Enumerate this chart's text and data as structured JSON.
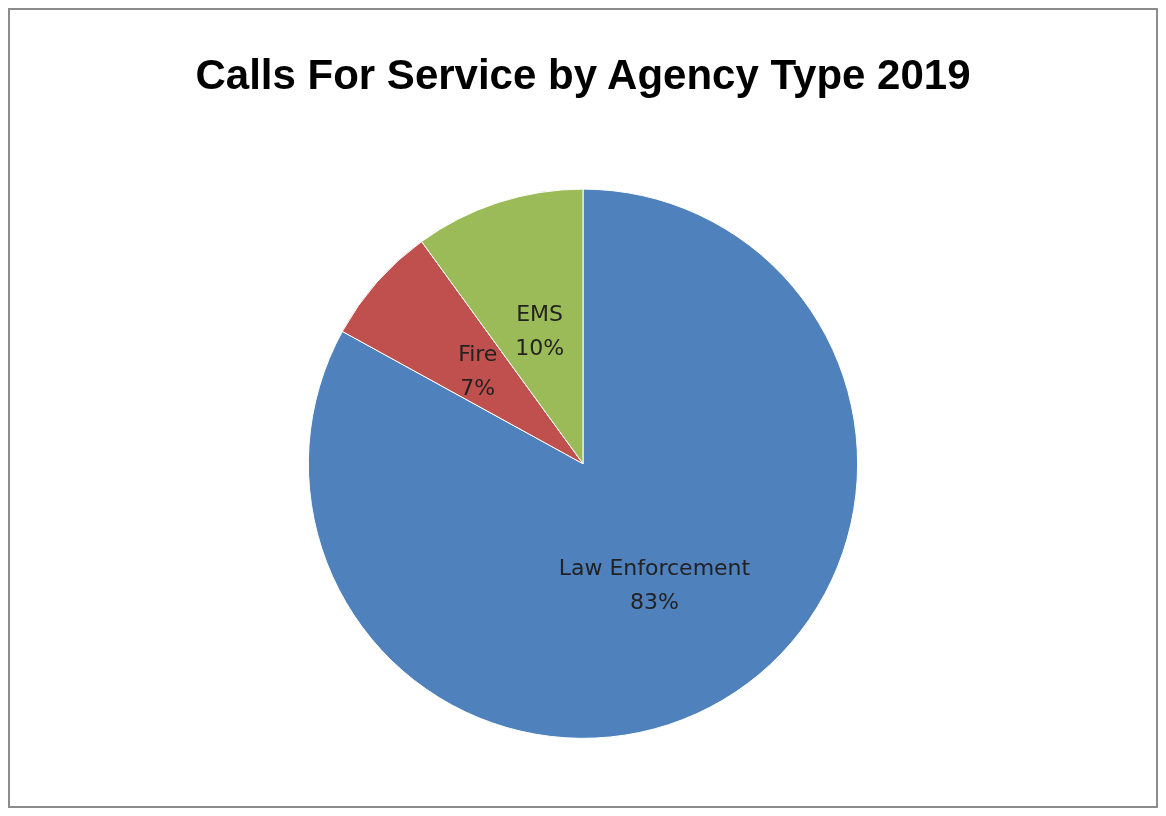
{
  "chart_data": {
    "type": "pie",
    "title": "Calls For Service by Agency Type 2019",
    "categories": [
      "Law Enforcement",
      "Fire",
      "EMS"
    ],
    "values": [
      83,
      7,
      10
    ],
    "colors": [
      "#4f81bd",
      "#c0504d",
      "#9bbb59"
    ],
    "value_labels": [
      "83%",
      "7%",
      "10%"
    ]
  }
}
